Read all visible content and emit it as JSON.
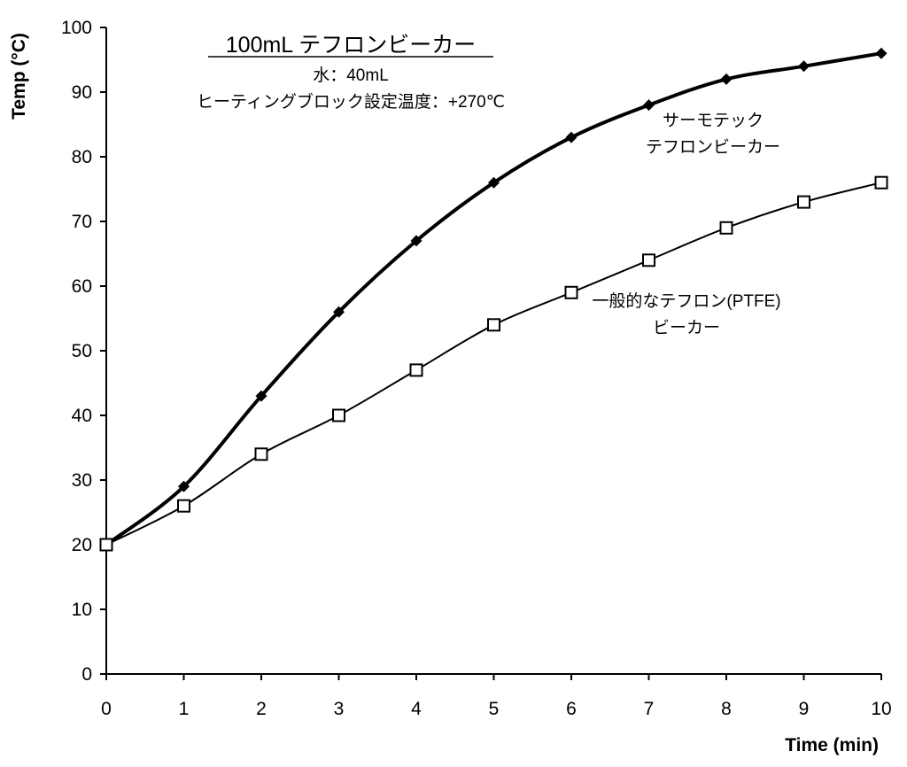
{
  "chart_data": {
    "type": "line",
    "title": "100mL テフロンビーカー",
    "subtitle_lines": [
      "水：40mL",
      "ヒーティングブロック設定温度：+270℃"
    ],
    "xlabel": "Time (min)",
    "ylabel": "Temp (°C)",
    "xlim": [
      0,
      10
    ],
    "ylim": [
      0,
      100
    ],
    "x_ticks": [
      0,
      1,
      2,
      3,
      4,
      5,
      6,
      7,
      8,
      9,
      10
    ],
    "y_ticks": [
      0,
      10,
      20,
      30,
      40,
      50,
      60,
      70,
      80,
      90,
      100
    ],
    "grid": false,
    "x": [
      0,
      1,
      2,
      3,
      4,
      5,
      6,
      7,
      8,
      9,
      10
    ],
    "series": [
      {
        "name": "サーモテック テフロンビーカー",
        "label_lines": [
          "サーモテック",
          "テフロンビーカー"
        ],
        "values": [
          20,
          29,
          43,
          56,
          67,
          76,
          83,
          88,
          92,
          94,
          96
        ],
        "marker": "filled-diamond",
        "color": "#000000"
      },
      {
        "name": "一般的なテフロン(PTFE) ビーカー",
        "label_lines": [
          "一般的なテフロン(PTFE)",
          "ビーカー"
        ],
        "values": [
          20,
          26,
          34,
          40,
          47,
          54,
          59,
          64,
          69,
          73,
          76
        ],
        "marker": "open-square",
        "color": "#000000"
      }
    ]
  }
}
